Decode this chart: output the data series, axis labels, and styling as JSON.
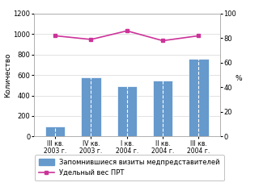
{
  "categories": [
    "III кв.\n2003 г.",
    "IV кв.\n2003 г.",
    "I кв.\n2004 г.",
    "II кв.\n2004 г.",
    "III кв.\n2004 г."
  ],
  "bar_values": [
    100,
    580,
    490,
    550,
    760
  ],
  "line_values": [
    82,
    79,
    86,
    78,
    82
  ],
  "bar_color": "#6699cc",
  "line_color": "#cc3399",
  "left_ylim": [
    0,
    1200
  ],
  "left_yticks": [
    0,
    200,
    400,
    600,
    800,
    1000,
    1200
  ],
  "right_ylim": [
    0,
    100
  ],
  "right_yticks": [
    0,
    20,
    40,
    60,
    80,
    100
  ],
  "left_ylabel": "Количество",
  "right_ylabel": "%",
  "legend_bar": "Запомнившиеся визиты медпредставителей",
  "legend_line": "Удельный вес ПРТ",
  "bg_color": "#ffffff",
  "plot_bg_color": "#ffffff"
}
